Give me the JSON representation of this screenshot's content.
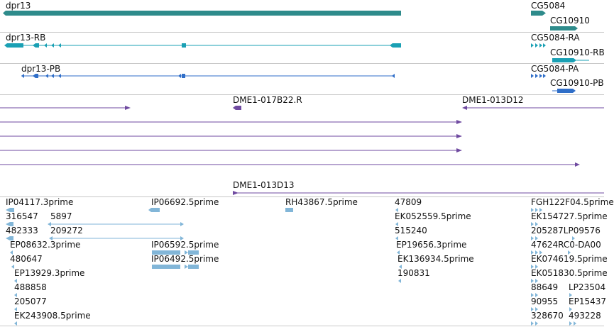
{
  "colors": {
    "gene": "#2e8b8b",
    "mrna_rb": "#1aa0b4",
    "protein": "#2f6ec8",
    "est": "#6f4aa0",
    "evidence": "#82b6d8",
    "divider": "#c8c8c8"
  },
  "tracks": {
    "gene": {
      "labels": [
        "dpr13",
        "CG5084",
        "CG10910"
      ]
    },
    "transcripts": {
      "labels": [
        "dpr13-RB",
        "CG5084-RA",
        "CG10910-RB"
      ]
    },
    "proteins": {
      "labels": [
        "dpr13-PB",
        "CG5084-PA",
        "CG10910-PB"
      ]
    },
    "clones": {
      "labels": [
        "DME1-017B22.R",
        "DME1-013D12",
        "DME1-013D13"
      ]
    },
    "ests": {
      "labels": [
        "IP04117.3prime",
        "IP06692.5prime",
        "RH43867.5prime",
        "47809",
        "FGH122F04.5prime",
        "316547",
        "5897",
        "EK052559.5prime",
        "EK154727.5prime",
        "482333",
        "209272",
        "515240",
        "205287LP09576",
        "EP08632.3prime",
        "IP06592.5prime",
        "EP19656.3prime",
        "47624RC0-DA00",
        "480647",
        "IP06492.5prime",
        "EK136934.5prime",
        "EK074619.5prime",
        "EP13929.3prime",
        "190831",
        "EK051830.5prime",
        "488858",
        "88649",
        "LP23504",
        "205077",
        "90955",
        "EP15437",
        "EK243908.5prime",
        "328670",
        "493228"
      ]
    }
  }
}
